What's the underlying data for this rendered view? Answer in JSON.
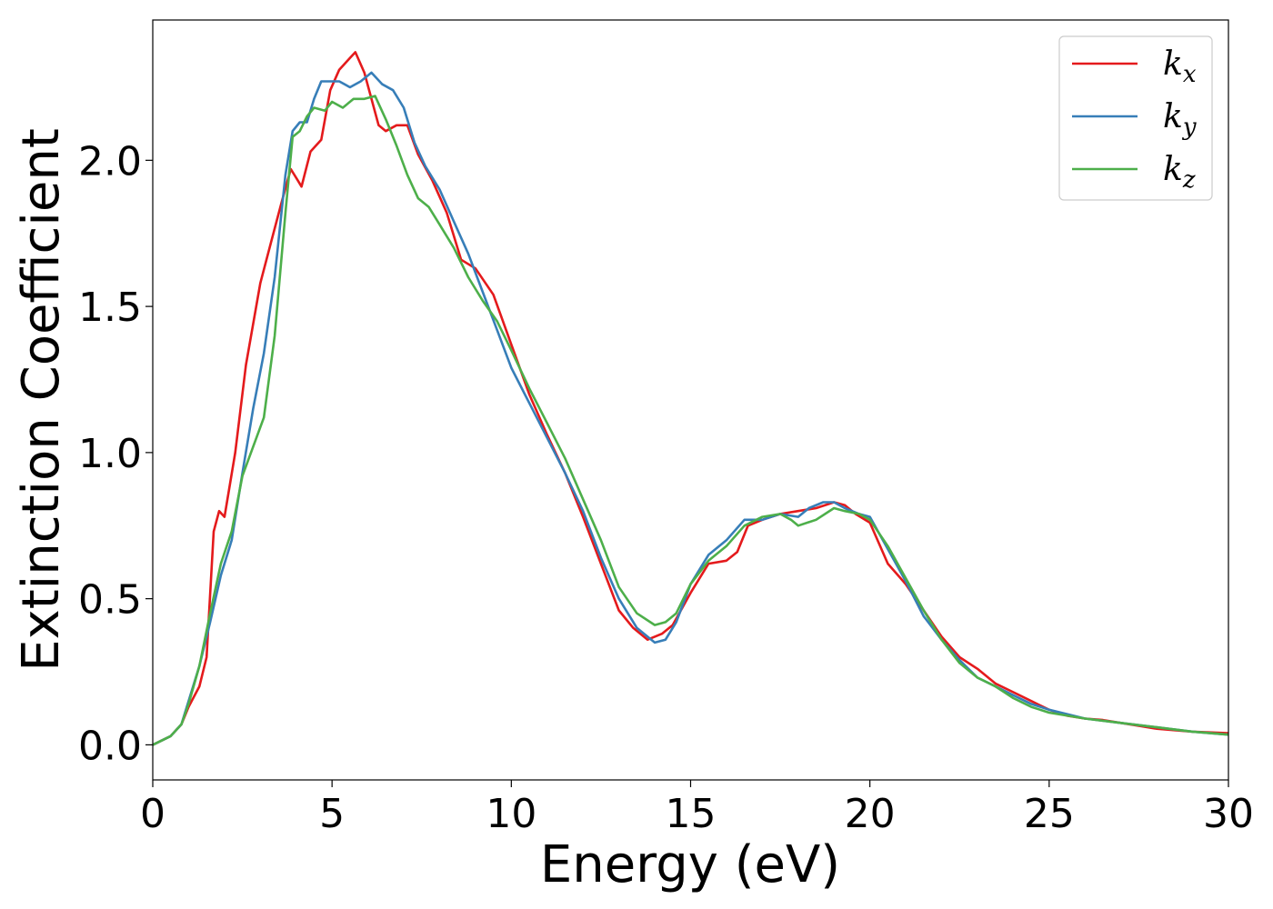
{
  "chart_data": {
    "type": "line",
    "xlabel": "Energy (eV)",
    "ylabel": "Extinction Coefficient",
    "xlim": [
      0,
      30
    ],
    "ylim": [
      -0.12,
      2.48
    ],
    "xticks": [
      0,
      5,
      10,
      15,
      20,
      25,
      30
    ],
    "xtick_labels": [
      "0",
      "5",
      "10",
      "15",
      "20",
      "25",
      "30"
    ],
    "yticks": [
      0.0,
      0.5,
      1.0,
      1.5,
      2.0
    ],
    "ytick_labels": [
      "0.0",
      "0.5",
      "1.0",
      "1.5",
      "2.0"
    ],
    "grid": false,
    "legend": "top-right",
    "series": [
      {
        "name": "k",
        "subscript": "x",
        "color": "#e41a1c",
        "points": [
          [
            0,
            0.0
          ],
          [
            0.5,
            0.03
          ],
          [
            0.8,
            0.07
          ],
          [
            1.0,
            0.13
          ],
          [
            1.3,
            0.2
          ],
          [
            1.5,
            0.3
          ],
          [
            1.7,
            0.73
          ],
          [
            1.85,
            0.8
          ],
          [
            2.0,
            0.78
          ],
          [
            2.3,
            1.0
          ],
          [
            2.6,
            1.3
          ],
          [
            3.0,
            1.58
          ],
          [
            3.3,
            1.72
          ],
          [
            3.6,
            1.86
          ],
          [
            3.85,
            1.97
          ],
          [
            4.05,
            1.93
          ],
          [
            4.15,
            1.91
          ],
          [
            4.4,
            2.03
          ],
          [
            4.7,
            2.07
          ],
          [
            4.95,
            2.24
          ],
          [
            5.2,
            2.31
          ],
          [
            5.5,
            2.35
          ],
          [
            5.65,
            2.37
          ],
          [
            5.9,
            2.3
          ],
          [
            6.3,
            2.12
          ],
          [
            6.5,
            2.1
          ],
          [
            6.8,
            2.12
          ],
          [
            7.1,
            2.12
          ],
          [
            7.4,
            2.02
          ],
          [
            7.8,
            1.93
          ],
          [
            8.2,
            1.82
          ],
          [
            8.6,
            1.66
          ],
          [
            9.0,
            1.63
          ],
          [
            9.5,
            1.54
          ],
          [
            10.0,
            1.37
          ],
          [
            10.5,
            1.2
          ],
          [
            11.0,
            1.06
          ],
          [
            11.5,
            0.93
          ],
          [
            12.0,
            0.78
          ],
          [
            12.5,
            0.62
          ],
          [
            13.0,
            0.46
          ],
          [
            13.4,
            0.4
          ],
          [
            13.8,
            0.36
          ],
          [
            14.2,
            0.38
          ],
          [
            14.5,
            0.41
          ],
          [
            15.0,
            0.52
          ],
          [
            15.5,
            0.62
          ],
          [
            16.0,
            0.63
          ],
          [
            16.3,
            0.66
          ],
          [
            16.6,
            0.75
          ],
          [
            17.0,
            0.77
          ],
          [
            17.5,
            0.79
          ],
          [
            18.0,
            0.8
          ],
          [
            18.5,
            0.81
          ],
          [
            19.0,
            0.83
          ],
          [
            19.3,
            0.82
          ],
          [
            19.6,
            0.79
          ],
          [
            20.0,
            0.76
          ],
          [
            20.5,
            0.62
          ],
          [
            21.0,
            0.55
          ],
          [
            21.5,
            0.46
          ],
          [
            22.0,
            0.37
          ],
          [
            22.5,
            0.3
          ],
          [
            23.0,
            0.26
          ],
          [
            23.5,
            0.21
          ],
          [
            24.0,
            0.18
          ],
          [
            24.5,
            0.15
          ],
          [
            25.0,
            0.12
          ],
          [
            25.5,
            0.1
          ],
          [
            26.0,
            0.09
          ],
          [
            26.5,
            0.085
          ],
          [
            27.0,
            0.075
          ],
          [
            27.5,
            0.065
          ],
          [
            28.0,
            0.055
          ],
          [
            28.5,
            0.05
          ],
          [
            29.0,
            0.045
          ],
          [
            30.0,
            0.04
          ]
        ]
      },
      {
        "name": "k",
        "subscript": "y",
        "color": "#377eb8",
        "points": [
          [
            0,
            0.0
          ],
          [
            0.5,
            0.03
          ],
          [
            0.8,
            0.07
          ],
          [
            1.0,
            0.15
          ],
          [
            1.3,
            0.27
          ],
          [
            1.6,
            0.42
          ],
          [
            1.9,
            0.58
          ],
          [
            2.2,
            0.7
          ],
          [
            2.5,
            0.93
          ],
          [
            2.8,
            1.15
          ],
          [
            3.1,
            1.34
          ],
          [
            3.4,
            1.6
          ],
          [
            3.7,
            1.95
          ],
          [
            3.9,
            2.1
          ],
          [
            4.1,
            2.13
          ],
          [
            4.3,
            2.13
          ],
          [
            4.5,
            2.21
          ],
          [
            4.7,
            2.27
          ],
          [
            5.0,
            2.27
          ],
          [
            5.2,
            2.27
          ],
          [
            5.5,
            2.25
          ],
          [
            5.8,
            2.27
          ],
          [
            6.1,
            2.3
          ],
          [
            6.4,
            2.26
          ],
          [
            6.7,
            2.24
          ],
          [
            7.0,
            2.18
          ],
          [
            7.3,
            2.06
          ],
          [
            7.6,
            1.98
          ],
          [
            8.0,
            1.9
          ],
          [
            8.4,
            1.79
          ],
          [
            8.8,
            1.68
          ],
          [
            9.2,
            1.55
          ],
          [
            9.6,
            1.42
          ],
          [
            10.0,
            1.29
          ],
          [
            10.5,
            1.17
          ],
          [
            11.0,
            1.05
          ],
          [
            11.5,
            0.93
          ],
          [
            12.0,
            0.8
          ],
          [
            12.5,
            0.64
          ],
          [
            13.0,
            0.5
          ],
          [
            13.5,
            0.4
          ],
          [
            14.0,
            0.35
          ],
          [
            14.3,
            0.36
          ],
          [
            14.6,
            0.42
          ],
          [
            15.0,
            0.55
          ],
          [
            15.5,
            0.65
          ],
          [
            16.0,
            0.7
          ],
          [
            16.5,
            0.77
          ],
          [
            17.0,
            0.77
          ],
          [
            17.5,
            0.79
          ],
          [
            18.0,
            0.78
          ],
          [
            18.3,
            0.81
          ],
          [
            18.7,
            0.83
          ],
          [
            19.0,
            0.83
          ],
          [
            19.3,
            0.81
          ],
          [
            19.7,
            0.79
          ],
          [
            20.0,
            0.78
          ],
          [
            20.5,
            0.67
          ],
          [
            21.0,
            0.56
          ],
          [
            21.5,
            0.44
          ],
          [
            22.0,
            0.36
          ],
          [
            22.5,
            0.29
          ],
          [
            23.0,
            0.23
          ],
          [
            23.5,
            0.2
          ],
          [
            24.0,
            0.17
          ],
          [
            24.5,
            0.14
          ],
          [
            25.0,
            0.12
          ],
          [
            26.0,
            0.09
          ],
          [
            27.0,
            0.075
          ],
          [
            28.0,
            0.06
          ],
          [
            29.0,
            0.045
          ],
          [
            30.0,
            0.035
          ]
        ]
      },
      {
        "name": "k",
        "subscript": "z",
        "color": "#4daf4a",
        "points": [
          [
            0,
            0.0
          ],
          [
            0.5,
            0.03
          ],
          [
            0.8,
            0.07
          ],
          [
            1.0,
            0.14
          ],
          [
            1.3,
            0.27
          ],
          [
            1.6,
            0.45
          ],
          [
            1.9,
            0.62
          ],
          [
            2.2,
            0.73
          ],
          [
            2.5,
            0.92
          ],
          [
            2.8,
            1.02
          ],
          [
            3.1,
            1.12
          ],
          [
            3.4,
            1.4
          ],
          [
            3.7,
            1.82
          ],
          [
            3.9,
            2.08
          ],
          [
            4.1,
            2.1
          ],
          [
            4.3,
            2.15
          ],
          [
            4.5,
            2.18
          ],
          [
            4.8,
            2.17
          ],
          [
            5.0,
            2.2
          ],
          [
            5.3,
            2.18
          ],
          [
            5.6,
            2.21
          ],
          [
            5.9,
            2.21
          ],
          [
            6.2,
            2.22
          ],
          [
            6.5,
            2.14
          ],
          [
            6.8,
            2.05
          ],
          [
            7.1,
            1.95
          ],
          [
            7.4,
            1.87
          ],
          [
            7.7,
            1.84
          ],
          [
            8.0,
            1.78
          ],
          [
            8.4,
            1.7
          ],
          [
            8.8,
            1.6
          ],
          [
            9.2,
            1.52
          ],
          [
            9.6,
            1.45
          ],
          [
            10.0,
            1.35
          ],
          [
            10.5,
            1.22
          ],
          [
            11.0,
            1.1
          ],
          [
            11.5,
            0.98
          ],
          [
            12.0,
            0.84
          ],
          [
            12.5,
            0.7
          ],
          [
            13.0,
            0.54
          ],
          [
            13.5,
            0.45
          ],
          [
            14.0,
            0.41
          ],
          [
            14.3,
            0.42
          ],
          [
            14.6,
            0.45
          ],
          [
            15.0,
            0.55
          ],
          [
            15.5,
            0.63
          ],
          [
            16.0,
            0.68
          ],
          [
            16.5,
            0.75
          ],
          [
            17.0,
            0.78
          ],
          [
            17.5,
            0.79
          ],
          [
            17.8,
            0.77
          ],
          [
            18.0,
            0.75
          ],
          [
            18.5,
            0.77
          ],
          [
            19.0,
            0.81
          ],
          [
            19.3,
            0.8
          ],
          [
            19.7,
            0.79
          ],
          [
            20.0,
            0.77
          ],
          [
            20.5,
            0.68
          ],
          [
            21.0,
            0.57
          ],
          [
            21.5,
            0.46
          ],
          [
            22.0,
            0.36
          ],
          [
            22.5,
            0.28
          ],
          [
            23.0,
            0.23
          ],
          [
            23.5,
            0.2
          ],
          [
            24.0,
            0.16
          ],
          [
            24.5,
            0.13
          ],
          [
            25.0,
            0.11
          ],
          [
            26.0,
            0.09
          ],
          [
            27.0,
            0.075
          ],
          [
            28.0,
            0.06
          ],
          [
            29.0,
            0.045
          ],
          [
            30.0,
            0.035
          ]
        ]
      }
    ]
  }
}
